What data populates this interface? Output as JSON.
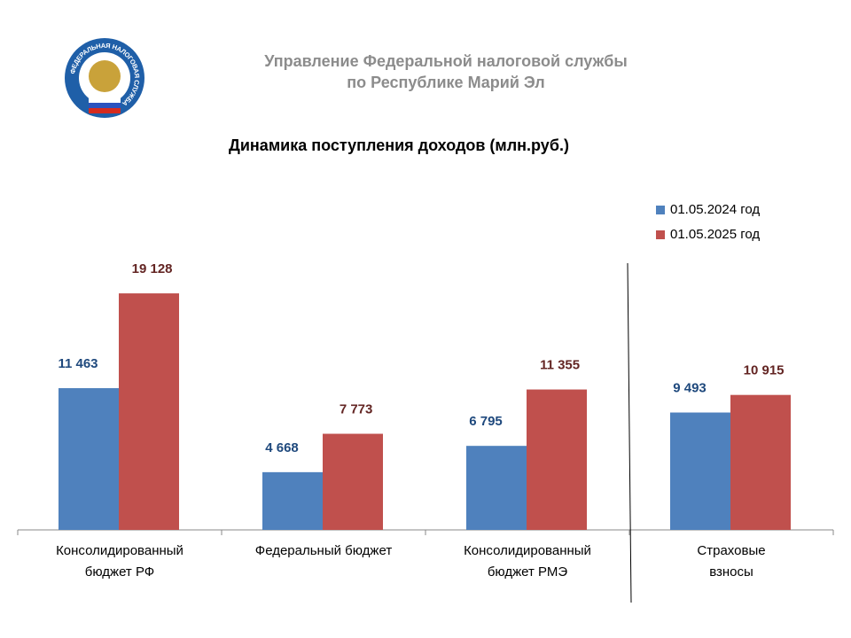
{
  "header": {
    "title_lines": [
      "Управление Федеральной налоговой службы",
      "по Республике Марий Эл"
    ],
    "logo_text": "ФЕДЕРАЛЬНАЯ НАЛОГОВАЯ СЛУЖБА"
  },
  "chart_data": {
    "type": "bar",
    "title": "Динамика поступления доходов (млн.руб.)",
    "categories": [
      [
        "Консолидированный",
        "бюджет РФ"
      ],
      [
        "Федеральный бюджет"
      ],
      [
        "Консолидированный",
        "бюджет РМЭ"
      ],
      [
        "Страховые",
        "взносы"
      ]
    ],
    "series": [
      {
        "name": "01.05.2024 год",
        "color": "#4f81bd",
        "label_color": "#1f497d",
        "values": [
          11463,
          4668,
          6795,
          9493
        ],
        "value_labels": [
          "11 463",
          "4 668",
          "6 795",
          "9 493"
        ]
      },
      {
        "name": "01.05.2025 год",
        "color": "#c0504d",
        "label_color": "#632523",
        "values": [
          19128,
          7773,
          11355,
          10915
        ],
        "value_labels": [
          "19 128",
          "7 773",
          "11 355",
          "10 915"
        ]
      }
    ],
    "ylim": [
      0,
      22000
    ],
    "legend": "top-right"
  }
}
